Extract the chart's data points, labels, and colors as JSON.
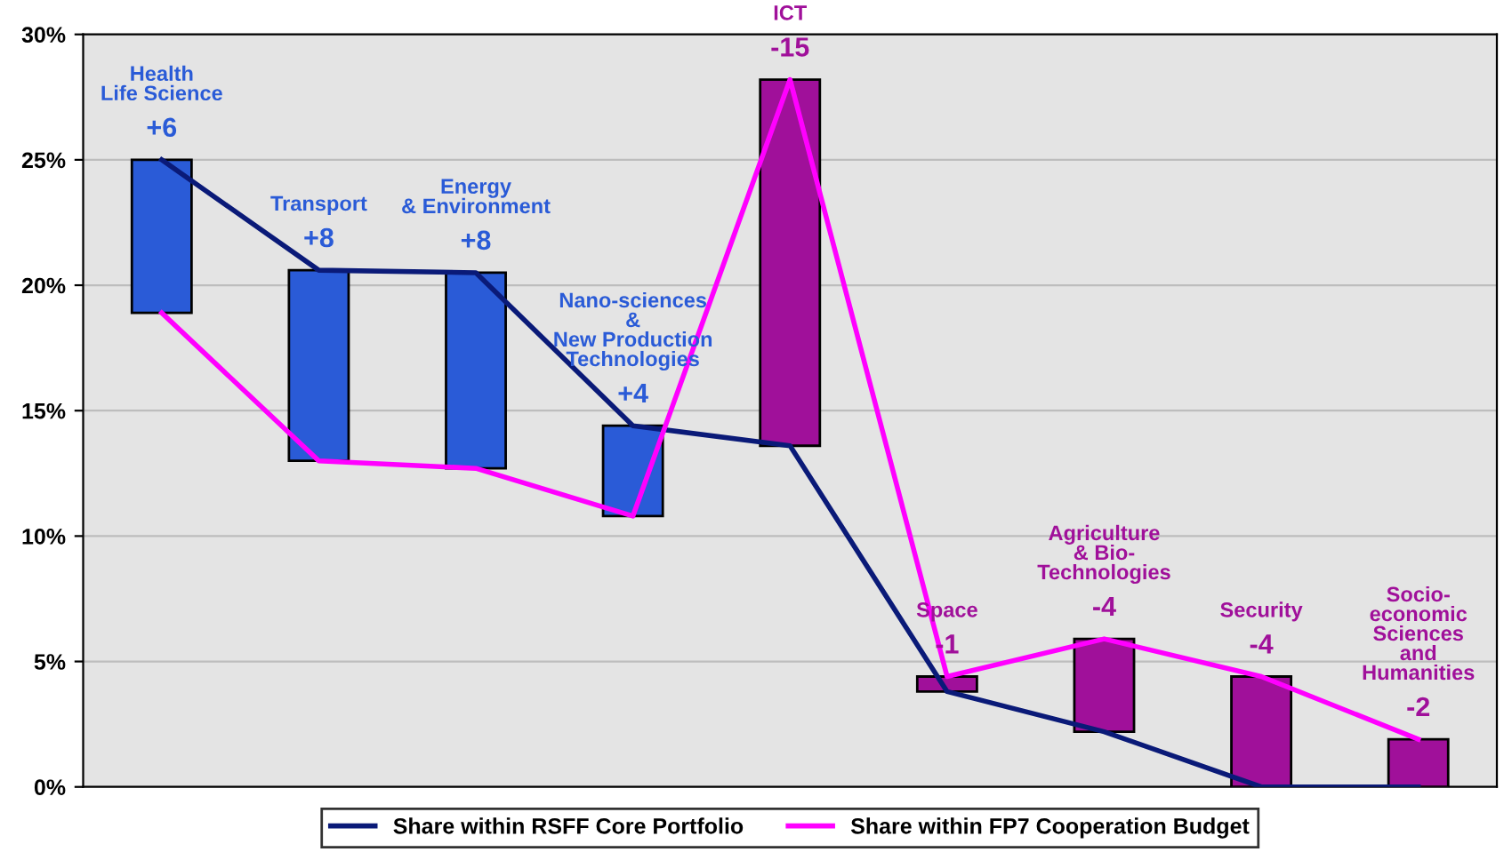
{
  "chart_data": {
    "type": "bar",
    "categories": [
      "Health\nLife Science",
      "Transport",
      "Energy\n& Environment",
      "Nano-sciences\n&\nNew Production\nTechnologies",
      "ICT",
      "Space",
      "Agriculture\n& Bio-\nTechnologies",
      "Security",
      "Socio-\neconomic\nSciences\nand\nHumanities"
    ],
    "series": [
      {
        "base": [
          18.9,
          13.0,
          12.7,
          10.8,
          28.2,
          4.4,
          5.9,
          4.4,
          1.9
        ],
        "values": [
          6.1,
          7.6,
          7.8,
          3.6,
          -14.6,
          -0.6,
          -3.7,
          -4.4,
          -1.9
        ],
        "colors": [
          "#2a5bd7",
          "#2a5bd7",
          "#2a5bd7",
          "#2a5bd7",
          "#a0109a",
          "#a0109a",
          "#a0109a",
          "#a0109a",
          "#a0109a"
        ],
        "value_labels": [
          "+6",
          "+8",
          "+8",
          "+4",
          "-15",
          "-1",
          "-4",
          "-4",
          "-2"
        ]
      },
      {
        "type": "line",
        "name": "Share within RSFF Core Portfolio",
        "color": "#0a1a78",
        "values": [
          25.0,
          20.6,
          20.5,
          14.4,
          13.6,
          3.8,
          2.2,
          0,
          0
        ]
      },
      {
        "type": "line",
        "name": "Share within FP7 Cooperation Budget",
        "color": "#ff00ff",
        "values": [
          18.9,
          13.0,
          12.7,
          10.8,
          28.2,
          4.4,
          5.9,
          4.4,
          1.9
        ]
      }
    ],
    "ylim": [
      0,
      30
    ],
    "yticks": [
      {
        "value": 0,
        "label": "0%"
      },
      {
        "value": 5,
        "label": "5%"
      },
      {
        "value": 10,
        "label": "10%"
      },
      {
        "value": 15,
        "label": "15%"
      },
      {
        "value": 20,
        "label": "20%"
      },
      {
        "value": 25,
        "label": "25%"
      },
      {
        "value": 30,
        "label": "30%"
      }
    ],
    "tick_labels": "y",
    "grid": "y",
    "legend": "bottom"
  }
}
